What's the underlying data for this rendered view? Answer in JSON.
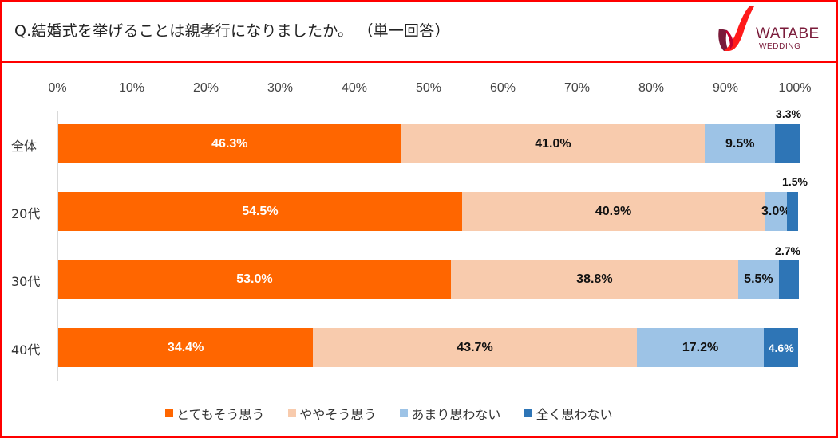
{
  "header": {
    "title": "Q.結婚式を挙げることは親孝行になりましたか。 （単一回答）",
    "logo": {
      "line1": "WATABE",
      "line2": "WEDDING",
      "icon": "watabe-ribbon-logo-icon"
    }
  },
  "colors": {
    "frame": "#ff0000",
    "series": [
      "#ff6600",
      "#f8cbad",
      "#9dc3e6",
      "#2e75b6"
    ]
  },
  "chart_data": {
    "type": "bar",
    "orientation": "horizontal",
    "stacked": "percent",
    "title": "Q.結婚式を挙げることは親孝行になりましたか。 （単一回答）",
    "xlabel": "",
    "ylabel": "",
    "xlim": [
      0,
      100
    ],
    "x_ticks": [
      "0%",
      "10%",
      "20%",
      "30%",
      "40%",
      "50%",
      "60%",
      "70%",
      "80%",
      "90%",
      "100%"
    ],
    "categories": [
      "全体",
      "20代",
      "30代",
      "40代"
    ],
    "series": [
      {
        "name": "とてもそう思う",
        "color": "#ff6600",
        "values": [
          46.3,
          54.5,
          53.0,
          34.4
        ],
        "labels": [
          "46.3%",
          "54.5%",
          "53.0%",
          "34.4%"
        ]
      },
      {
        "name": "ややそう思う",
        "color": "#f8cbad",
        "values": [
          41.0,
          40.9,
          38.8,
          43.7
        ],
        "labels": [
          "41.0%",
          "40.9%",
          "38.8%",
          "43.7%"
        ]
      },
      {
        "name": "あまり思わない",
        "color": "#9dc3e6",
        "values": [
          9.5,
          3.0,
          5.5,
          17.2
        ],
        "labels": [
          "9.5%",
          "3.0%",
          "5.5%",
          "17.2%"
        ]
      },
      {
        "name": "全く思わない",
        "color": "#2e75b6",
        "values": [
          3.3,
          1.5,
          2.7,
          4.6
        ],
        "labels": [
          "3.3%",
          "1.5%",
          "2.7%",
          "4.6%"
        ]
      }
    ],
    "legend_position": "bottom",
    "grid": false
  },
  "legend": [
    {
      "label": "とてもそう思う",
      "color": "#ff6600"
    },
    {
      "label": "ややそう思う",
      "color": "#f8cbad"
    },
    {
      "label": "あまり思わない",
      "color": "#9dc3e6"
    },
    {
      "label": "全く思わない",
      "color": "#2e75b6"
    }
  ]
}
